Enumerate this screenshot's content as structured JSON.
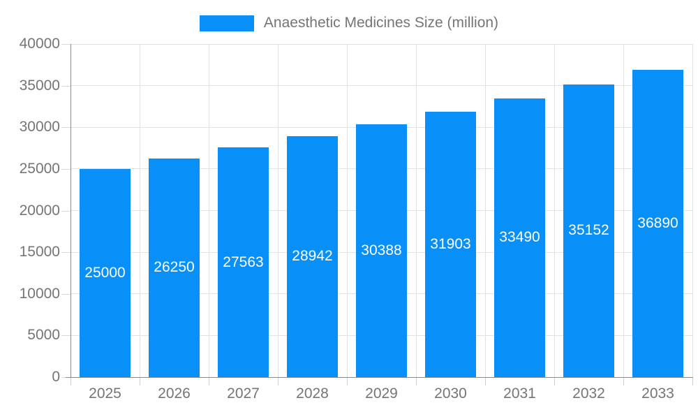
{
  "chart_data": {
    "type": "bar",
    "series_name": "Anaesthetic Medicines Size (million)",
    "categories": [
      "2025",
      "2026",
      "2027",
      "2028",
      "2029",
      "2030",
      "2031",
      "2032",
      "2033"
    ],
    "values": [
      25000,
      26250,
      27563,
      28942,
      30388,
      31903,
      33490,
      35152,
      36890
    ],
    "title": "",
    "xlabel": "",
    "ylabel": "",
    "ylim": [
      0,
      40000
    ],
    "ytick_step": 5000,
    "ytick_labels": [
      "0",
      "5000",
      "10000",
      "15000",
      "20000",
      "25000",
      "30000",
      "35000",
      "40000"
    ],
    "grid": true,
    "legend_position": "top",
    "bar_labels_shown": true,
    "colors": {
      "bar": "#0890f8",
      "bar_label_text": "#ffffff",
      "axis_text": "#757575",
      "gridline": "#e2e2e2",
      "axis_line": "#8a8a8a",
      "background": "#ffffff"
    }
  }
}
